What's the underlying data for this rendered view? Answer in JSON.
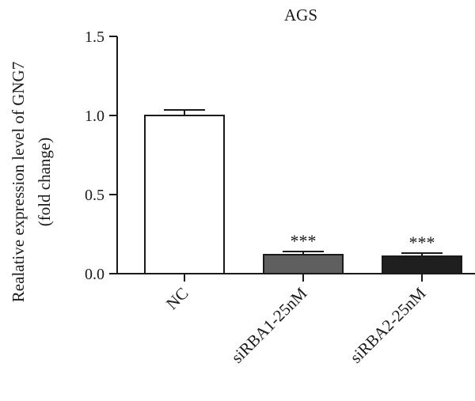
{
  "chart_data": {
    "type": "bar",
    "title": "AGS",
    "ylabel_line1": "Realative expression level of GNG7",
    "ylabel_line2": "(fold change)",
    "xlabel": "",
    "ylim": [
      0,
      1.5
    ],
    "yticks": [
      0.0,
      0.5,
      1.0,
      1.5
    ],
    "ytick_labels": [
      "0.0",
      "0.5",
      "1.0",
      "1.5"
    ],
    "categories": [
      "NC",
      "siRBA1-25nM",
      "siRBA2-25nM"
    ],
    "values": [
      1.0,
      0.12,
      0.11
    ],
    "errors": [
      0.035,
      0.02,
      0.02
    ],
    "annotations": [
      "",
      "***",
      "***"
    ],
    "colors": [
      "#ffffff",
      "#5f5f5f",
      "#1f1f1f"
    ],
    "edge_color": "#1a1a1a",
    "grid": false,
    "legend": "none"
  }
}
